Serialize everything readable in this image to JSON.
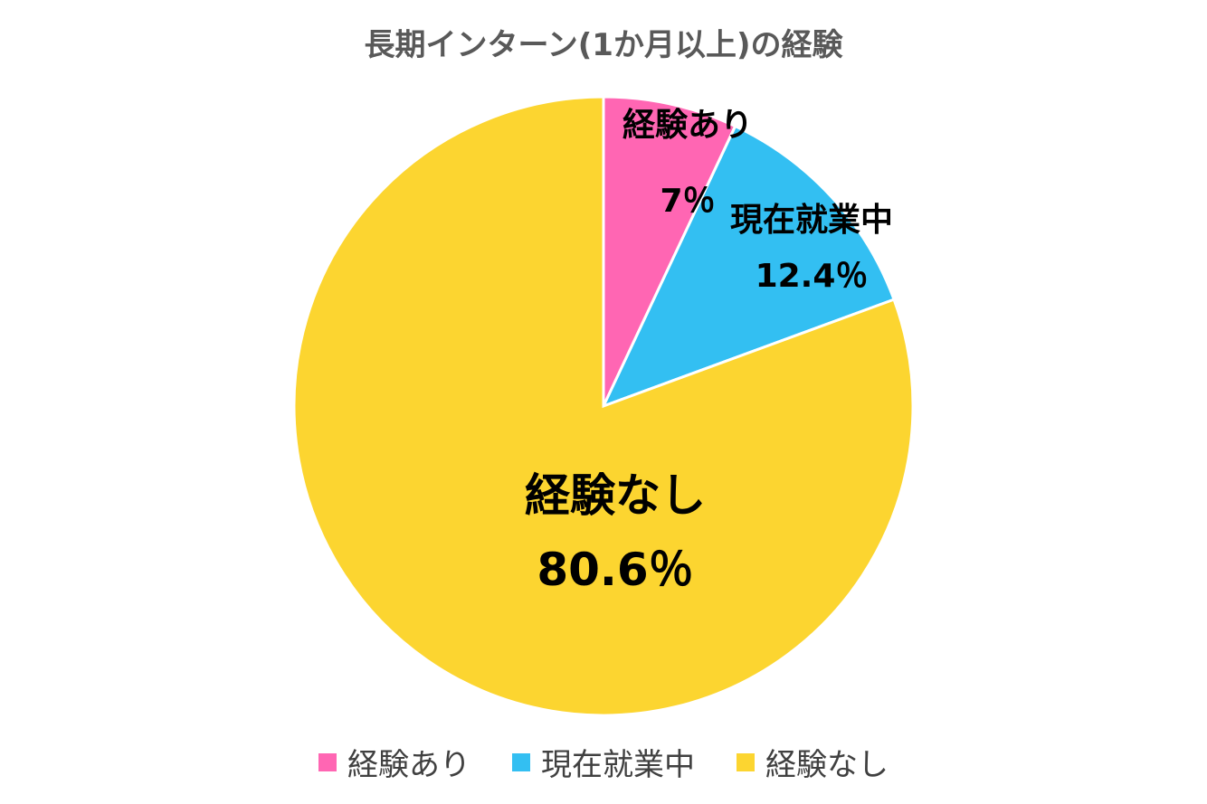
{
  "chart_data": {
    "type": "pie",
    "title": "長期インターン(1か月以上)の経験",
    "categories": [
      "経験あり",
      "現在就業中",
      "経験なし"
    ],
    "values": [
      7,
      12.4,
      80.6
    ],
    "value_labels": [
      "7％",
      "12.4％",
      "80.6％"
    ],
    "colors": [
      "#ff66b3",
      "#33bff2",
      "#fcd530"
    ],
    "legend_position": "bottom"
  }
}
